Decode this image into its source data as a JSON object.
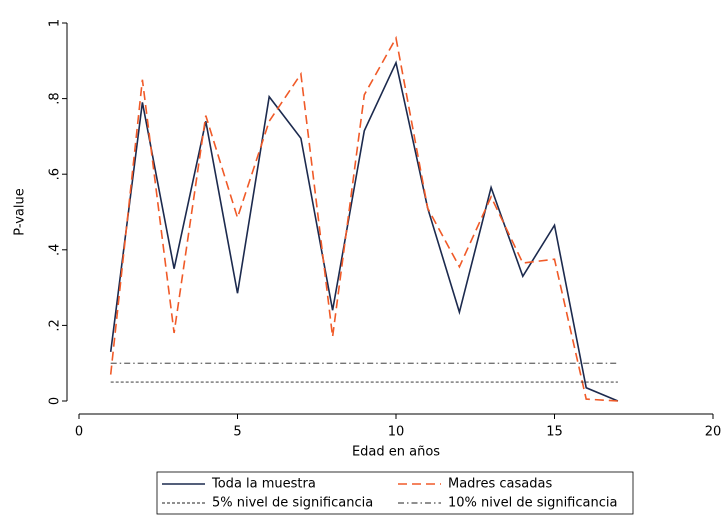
{
  "chart_data": {
    "type": "line",
    "x_label": "Edad en años",
    "y_label": "P-value",
    "x": [
      1,
      2,
      3,
      4,
      5,
      6,
      7,
      8,
      9,
      10,
      11,
      12,
      13,
      14,
      15,
      16,
      17
    ],
    "series": [
      {
        "name": "Toda la muestra",
        "color": "#1c2a4e",
        "dash": "solid",
        "values": [
          0.13,
          0.79,
          0.35,
          0.74,
          0.285,
          0.805,
          0.695,
          0.24,
          0.715,
          0.895,
          0.51,
          0.235,
          0.565,
          0.33,
          0.465,
          0.035,
          0.0
        ]
      },
      {
        "name": "Madres casadas",
        "color": "#f05a28",
        "dash": "dashed",
        "values": [
          0.07,
          0.85,
          0.18,
          0.755,
          0.485,
          0.74,
          0.865,
          0.17,
          0.81,
          0.96,
          0.51,
          0.355,
          0.54,
          0.365,
          0.375,
          0.005,
          0.0
        ]
      },
      {
        "name": "5% nivel de significancia",
        "color": "#222222",
        "dash": "dotted",
        "values": [
          0.05,
          0.05,
          0.05,
          0.05,
          0.05,
          0.05,
          0.05,
          0.05,
          0.05,
          0.05,
          0.05,
          0.05,
          0.05,
          0.05,
          0.05,
          0.05,
          0.05
        ]
      },
      {
        "name": "10% nivel de significancia",
        "color": "#222222",
        "dash": "dashdot",
        "values": [
          0.1,
          0.1,
          0.1,
          0.1,
          0.1,
          0.1,
          0.1,
          0.1,
          0.1,
          0.1,
          0.1,
          0.1,
          0.1,
          0.1,
          0.1,
          0.1,
          0.1
        ]
      }
    ],
    "xlim": [
      0,
      20
    ],
    "xticks": [
      0,
      5,
      10,
      15,
      20
    ],
    "ylim": [
      0,
      1
    ],
    "yticks": [
      0,
      {
        "value": 0.2,
        "label": ".2"
      },
      {
        "value": 0.4,
        "label": ".4"
      },
      {
        "value": 0.6,
        "label": ".6"
      },
      {
        "value": 0.8,
        "label": ".8"
      },
      1
    ],
    "grid": false,
    "legend": "bottom"
  }
}
